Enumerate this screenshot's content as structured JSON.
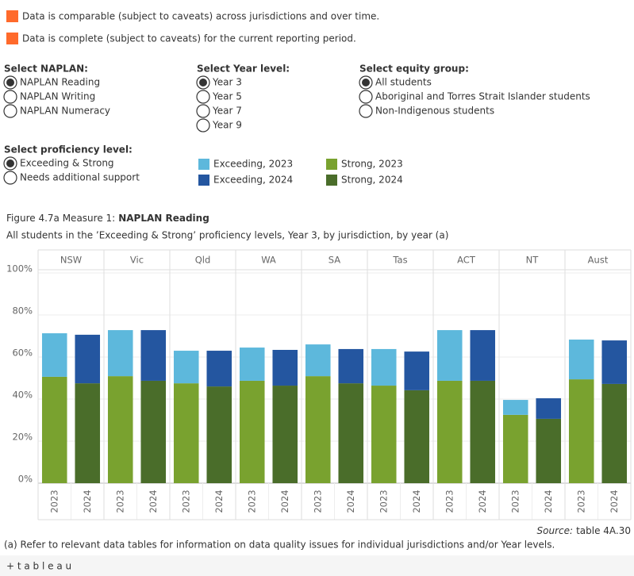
{
  "notes": [
    "Data is comparable (subject to caveats) across jurisdictions and over time.",
    "Data is complete (subject to caveats) for the current reporting period."
  ],
  "controls": [
    {
      "label": "Select NAPLAN:",
      "options": [
        "NAPLAN Reading",
        "NAPLAN Writing",
        "NAPLAN Numeracy"
      ],
      "selected": 0
    },
    {
      "label": "Select Year level:",
      "options": [
        "Year 3",
        "Year 5",
        "Year 7",
        "Year 9"
      ],
      "selected": 0
    },
    {
      "label": "Select equity group:",
      "options": [
        "All students",
        "Aboriginal and Torres Strait Islander students",
        "Non-Indigenous students"
      ],
      "selected": 0
    },
    {
      "label": "Select proficiency level:",
      "options": [
        "Exceeding & Strong",
        "Needs additional support"
      ],
      "selected": 0
    }
  ],
  "chart_data": {
    "type": "bar",
    "title_prefix": "Figure 4.7a Measure 1:",
    "title": "NAPLAN Reading",
    "subtitle": "All students in the ’Exceeding & Strong’ proficiency levels, Year 3, by jurisdiction, by year (a)",
    "categories": [
      "NSW",
      "Vic",
      "Qld",
      "WA",
      "SA",
      "Tas",
      "ACT",
      "NT",
      "Aust"
    ],
    "years": [
      "2023",
      "2024"
    ],
    "series": [
      {
        "name": "Strong, 2023",
        "color": "#79a22f",
        "values": [
          50.6,
          50.9,
          47.5,
          48.7,
          50.9,
          46.4,
          48.7,
          32.5,
          49.4
        ]
      },
      {
        "name": "Exceeding, 2023",
        "color": "#5db8dc",
        "values": [
          20.7,
          21.9,
          15.5,
          15.8,
          15.1,
          17.4,
          24.1,
          7.1,
          18.9
        ]
      },
      {
        "name": "Strong, 2024",
        "color": "#4a6d2a",
        "values": [
          47.5,
          48.7,
          46.0,
          46.4,
          47.5,
          44.2,
          48.7,
          30.6,
          47.2
        ]
      },
      {
        "name": "Exceeding, 2024",
        "color": "#2456a0",
        "values": [
          23.1,
          24.1,
          17.0,
          17.0,
          16.3,
          18.4,
          24.1,
          9.8,
          20.7
        ]
      }
    ],
    "ylim": [
      0,
      100
    ],
    "yticks": [
      {
        "value": 0,
        "label": "0%"
      },
      {
        "value": 20,
        "label": "20%"
      },
      {
        "value": 40,
        "label": "40%"
      },
      {
        "value": 60,
        "label": "60%"
      },
      {
        "value": 80,
        "label": "80%"
      },
      {
        "value": 100,
        "label": "100%"
      }
    ],
    "grid": true
  },
  "source": {
    "label": "Source:",
    "text": "table 4A.30"
  },
  "footnote": "(a) Refer to relevant data tables for information on data quality issues for individual jurisdictions and/or Year levels.",
  "brand": "+ t a b l e a u"
}
